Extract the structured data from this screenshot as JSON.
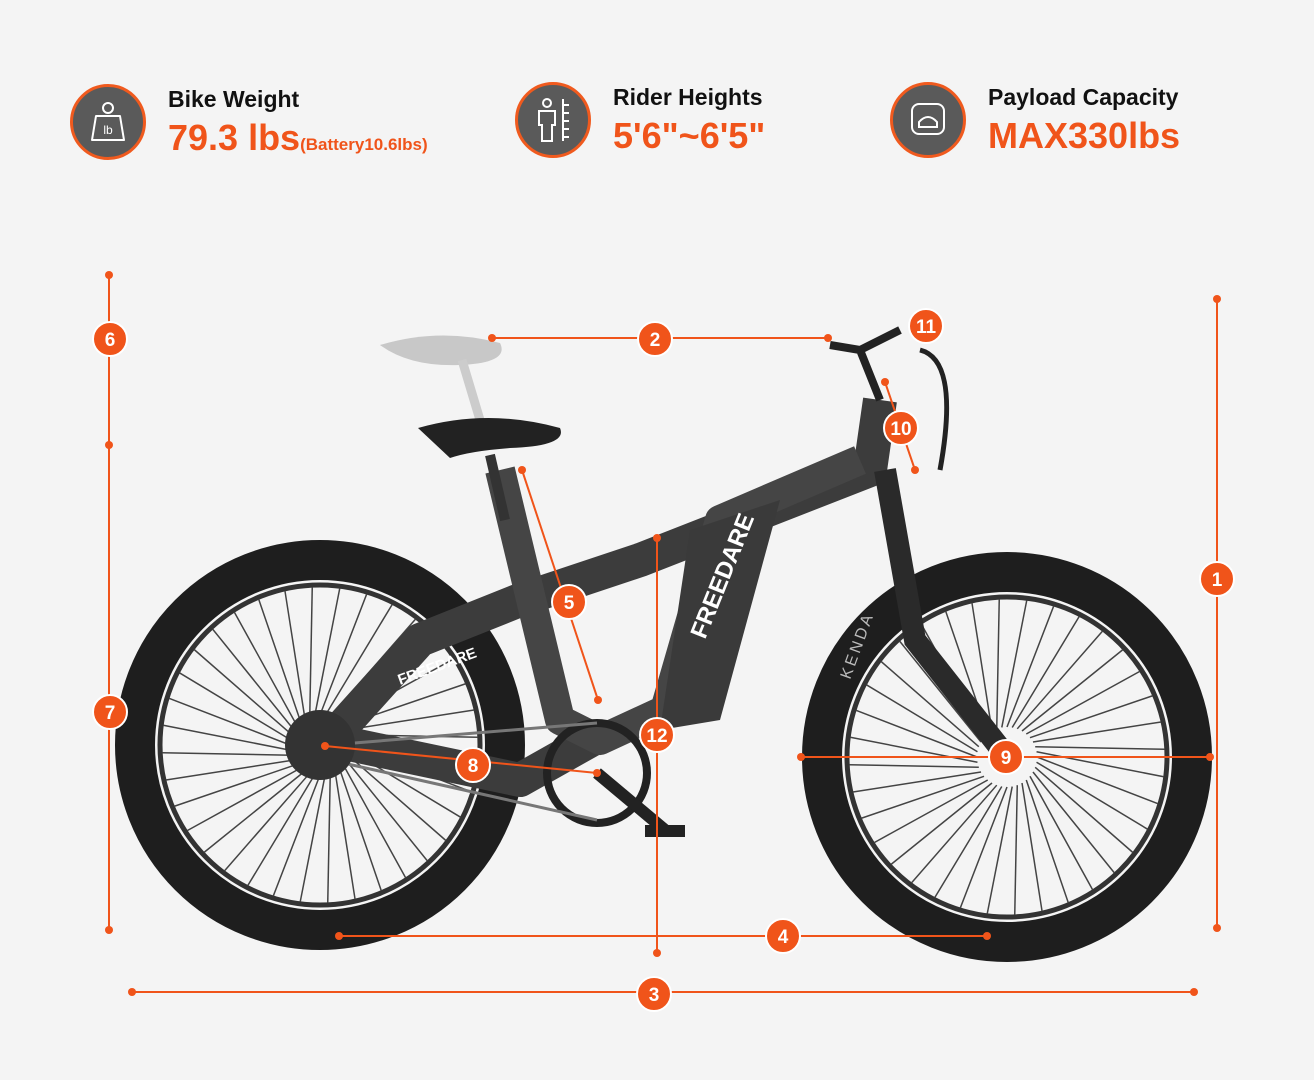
{
  "specs": [
    {
      "label": "Bike Weight",
      "value": "79.3 lbs",
      "note": "(Battery10.6lbs)",
      "icon": "weight-icon"
    },
    {
      "label": "Rider Heights",
      "value": "5'6\"~6'5\"",
      "icon": "rider-height-icon"
    },
    {
      "label": "Payload Capacity",
      "value": "MAX330lbs",
      "icon": "payload-scale-icon"
    }
  ],
  "brand": "FREEDARE",
  "tire_brand": "KENDA",
  "markers": [
    "1",
    "2",
    "3",
    "4",
    "5",
    "6",
    "7",
    "8",
    "9",
    "10",
    "11",
    "12"
  ],
  "colors": {
    "accent": "#f0541a",
    "icon_bg": "#5a5a5a",
    "background": "#f4f4f4"
  }
}
